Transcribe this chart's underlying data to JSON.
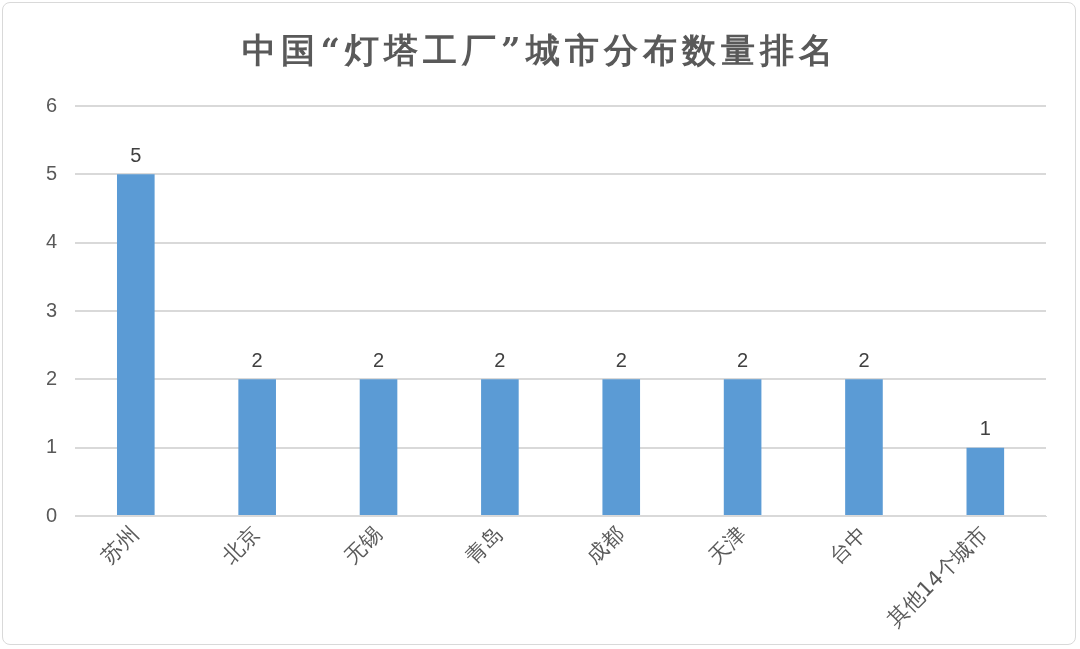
{
  "chart_data": {
    "type": "bar",
    "title": "中国“灯塔工厂”城市分布数量排名",
    "categories": [
      "苏州",
      "北京",
      "无锡",
      "青岛",
      "成都",
      "天津",
      "台中",
      "其他14个城市"
    ],
    "values": [
      5,
      2,
      2,
      2,
      2,
      2,
      2,
      1
    ],
    "color": "#5b9bd5",
    "ylim": [
      0,
      6
    ],
    "yticks": [
      0,
      1,
      2,
      3,
      4,
      5,
      6
    ],
    "grid": "y",
    "data_labels": true,
    "legend": false
  }
}
